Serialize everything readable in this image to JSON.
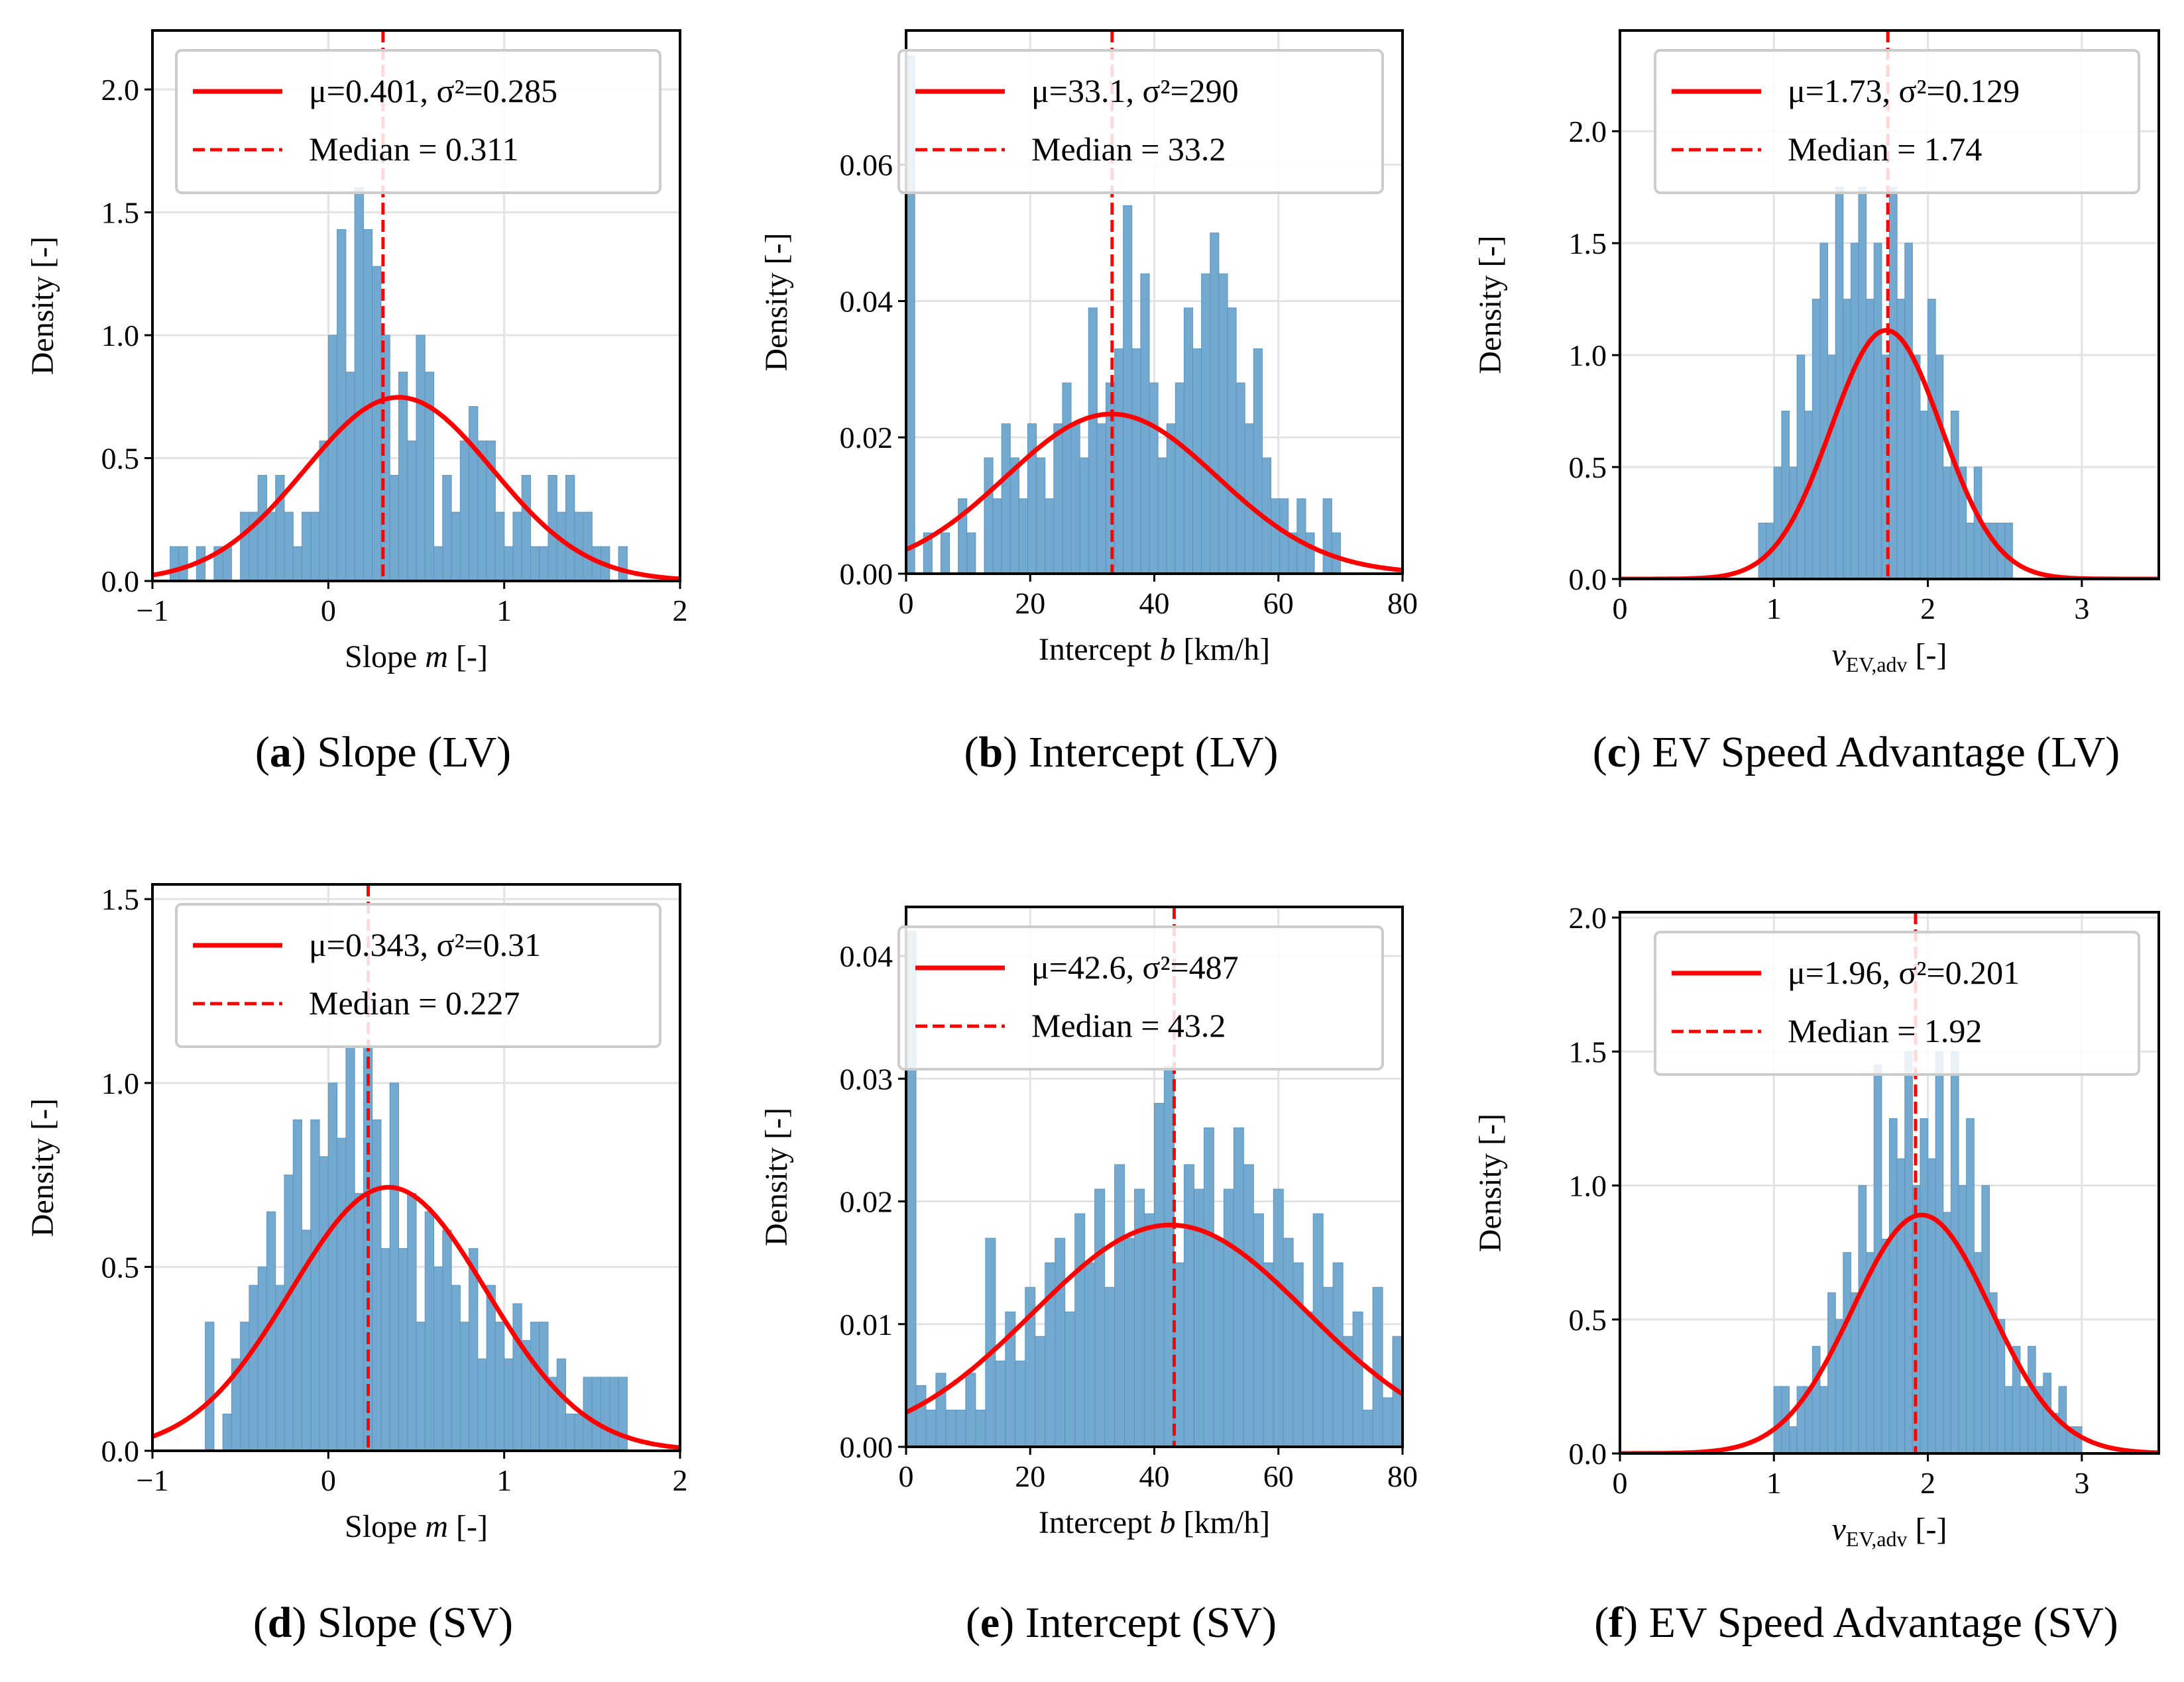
{
  "chart_data": [
    {
      "type": "bar",
      "panel": "a",
      "caption": "Slope (LV)",
      "xlabel": {
        "base": "Slope ",
        "ital": "m",
        "sub": "",
        "suffix": " [-]"
      },
      "ylabel": "Density [-]",
      "xlim": [
        -1,
        2
      ],
      "ylim": [
        0,
        2.24
      ],
      "xticks": [
        -1,
        0,
        1,
        2
      ],
      "xticklabels": [
        "−1",
        "0",
        "1",
        "2"
      ],
      "yticks": [
        0,
        0.5,
        1,
        1.5,
        2
      ],
      "yticklabels": [
        "0.0",
        "0.5",
        "1.0",
        "1.5",
        "2.0"
      ],
      "fit": {
        "mu": 0.401,
        "var": 0.285,
        "label": "μ=0.401, σ²=0.285"
      },
      "median": {
        "value": 0.311,
        "label": "Median = 0.311"
      },
      "bins": {
        "start": -0.9,
        "width": 0.05,
        "values": [
          0.14,
          0.14,
          0,
          0.14,
          0,
          0.14,
          0.14,
          0,
          0.28,
          0.28,
          0.43,
          0.28,
          0.43,
          0.28,
          0.14,
          0.28,
          0.28,
          0.57,
          1.0,
          1.43,
          0.85,
          1.6,
          1.43,
          1.28,
          1.0,
          0.43,
          0.85,
          0.57,
          1.0,
          0.85,
          0.14,
          0.43,
          0.28,
          0.57,
          0.71,
          0.57,
          0.57,
          0.28,
          0.14,
          0.28,
          0.43,
          0.14,
          0.14,
          0.43,
          0.28,
          0.43,
          0.28,
          0.28,
          0.14,
          0.14,
          0,
          0.14
        ]
      }
    },
    {
      "type": "bar",
      "panel": "b",
      "caption": "Intercept (LV)",
      "xlabel": {
        "base": "Intercept ",
        "ital": "b",
        "sub": "",
        "suffix": " [km/h]"
      },
      "ylabel": "Density [-]",
      "xlim": [
        0,
        80
      ],
      "ylim": [
        0,
        0.0797
      ],
      "xticks": [
        0,
        20,
        40,
        60,
        80
      ],
      "xticklabels": [
        "0",
        "20",
        "40",
        "60",
        "80"
      ],
      "yticks": [
        0,
        0.02,
        0.04,
        0.06
      ],
      "yticklabels": [
        "0.00",
        "0.02",
        "0.04",
        "0.06"
      ],
      "fit": {
        "mu": 33.1,
        "var": 290,
        "label": "μ=33.1, σ²=290"
      },
      "median": {
        "value": 33.2,
        "label": "Median = 33.2"
      },
      "bins": {
        "start": 0,
        "width": 1.4,
        "values": [
          0.076,
          0,
          0.006,
          0,
          0.006,
          0,
          0.011,
          0.006,
          0,
          0.017,
          0.011,
          0.022,
          0.017,
          0.011,
          0.022,
          0.017,
          0.011,
          0.022,
          0.028,
          0.022,
          0.017,
          0.039,
          0.022,
          0.028,
          0.033,
          0.054,
          0.033,
          0.044,
          0.028,
          0.017,
          0.022,
          0.028,
          0.039,
          0.033,
          0.044,
          0.05,
          0.044,
          0.039,
          0.028,
          0.022,
          0.033,
          0.017,
          0.011,
          0.011,
          0.006,
          0.011,
          0.006,
          0,
          0.011,
          0.006
        ]
      }
    },
    {
      "type": "bar",
      "panel": "c",
      "caption": "EV Speed Advantage (LV)",
      "xlabel": {
        "base": "",
        "ital": "v",
        "sub": "EV,adv",
        "suffix": " [-]"
      },
      "ylabel": "Density [-]",
      "xlim": [
        0,
        3.5
      ],
      "ylim": [
        0,
        2.45
      ],
      "xticks": [
        0,
        1,
        2,
        3
      ],
      "xticklabels": [
        "0",
        "1",
        "2",
        "3"
      ],
      "yticks": [
        0,
        0.5,
        1,
        1.5,
        2
      ],
      "yticklabels": [
        "0.0",
        "0.5",
        "1.0",
        "1.5",
        "2.0"
      ],
      "fit": {
        "mu": 1.73,
        "var": 0.129,
        "label": "μ=1.73, σ²=0.129"
      },
      "median": {
        "value": 1.74,
        "label": "Median = 1.74"
      },
      "bins": {
        "start": 0.9,
        "width": 0.05,
        "values": [
          0.25,
          0.25,
          0.5,
          0.75,
          0.5,
          1.0,
          0.75,
          1.25,
          1.5,
          1.0,
          1.75,
          1.25,
          1.5,
          1.75,
          1.25,
          1.5,
          1.0,
          1.75,
          1.25,
          1.5,
          1.0,
          0.75,
          1.25,
          1.0,
          0.5,
          0.75,
          0.5,
          0.25,
          0.5,
          0.25,
          0.25,
          0.25,
          0.25,
          0
        ]
      }
    },
    {
      "type": "bar",
      "panel": "d",
      "caption": "Slope (SV)",
      "xlabel": {
        "base": "Slope ",
        "ital": "m",
        "sub": "",
        "suffix": " [-]"
      },
      "ylabel": "Density [-]",
      "xlim": [
        -1,
        2
      ],
      "ylim": [
        0,
        1.54
      ],
      "xticks": [
        -1,
        0,
        1,
        2
      ],
      "xticklabels": [
        "−1",
        "0",
        "1",
        "2"
      ],
      "yticks": [
        0,
        0.5,
        1,
        1.5
      ],
      "yticklabels": [
        "0.0",
        "0.5",
        "1.0",
        "1.5"
      ],
      "fit": {
        "mu": 0.343,
        "var": 0.31,
        "label": "μ=0.343, σ²=0.31"
      },
      "median": {
        "value": 0.227,
        "label": "Median = 0.227"
      },
      "bins": {
        "start": -0.7,
        "width": 0.05,
        "values": [
          0.35,
          0,
          0.1,
          0.25,
          0.35,
          0.45,
          0.5,
          0.65,
          0.45,
          0.75,
          0.9,
          0.6,
          0.9,
          0.8,
          1.0,
          0.85,
          1.1,
          0.7,
          1.1,
          0.9,
          0.55,
          1.0,
          0.55,
          0.7,
          0.35,
          0.65,
          0.5,
          0.6,
          0.45,
          0.35,
          0.55,
          0.25,
          0.45,
          0.35,
          0.25,
          0.4,
          0.3,
          0.35,
          0.35,
          0.2,
          0.25,
          0.1,
          0.1,
          0.2,
          0.2,
          0.2,
          0.2,
          0.2
        ]
      }
    },
    {
      "type": "bar",
      "panel": "e",
      "caption": "Intercept (SV)",
      "xlabel": {
        "base": "Intercept ",
        "ital": "b",
        "sub": "",
        "suffix": " [km/h]"
      },
      "ylabel": "Density [-]",
      "xlim": [
        0,
        80
      ],
      "ylim": [
        0,
        0.044
      ],
      "xticks": [
        0,
        20,
        40,
        60,
        80
      ],
      "xticklabels": [
        "0",
        "20",
        "40",
        "60",
        "80"
      ],
      "yticks": [
        0,
        0.01,
        0.02,
        0.03,
        0.04
      ],
      "yticklabels": [
        "0.00",
        "0.01",
        "0.02",
        "0.03",
        "0.04"
      ],
      "fit": {
        "mu": 42.6,
        "var": 487,
        "label": "μ=42.6, σ²=487"
      },
      "median": {
        "value": 43.2,
        "label": "Median = 43.2"
      },
      "bins": {
        "start": 0,
        "width": 1.6,
        "values": [
          0.042,
          0.005,
          0.003,
          0.006,
          0.003,
          0.003,
          0.006,
          0.003,
          0.017,
          0.007,
          0.011,
          0.007,
          0.013,
          0.009,
          0.015,
          0.017,
          0.011,
          0.019,
          0.015,
          0.021,
          0.013,
          0.023,
          0.017,
          0.021,
          0.019,
          0.028,
          0.031,
          0.015,
          0.023,
          0.021,
          0.026,
          0.017,
          0.021,
          0.026,
          0.023,
          0.019,
          0.015,
          0.021,
          0.017,
          0.015,
          0.011,
          0.019,
          0.013,
          0.015,
          0.009,
          0.011,
          0.003,
          0.013,
          0.004,
          0.009
        ]
      }
    },
    {
      "type": "bar",
      "panel": "f",
      "caption": "EV Speed Advantage (SV)",
      "xlabel": {
        "base": "",
        "ital": "v",
        "sub": "EV,adv",
        "suffix": " [-]"
      },
      "ylabel": "Density [-]",
      "xlim": [
        0,
        3.5
      ],
      "ylim": [
        0,
        2.02
      ],
      "xticks": [
        0,
        1,
        2,
        3
      ],
      "xticklabels": [
        "0",
        "1",
        "2",
        "3"
      ],
      "yticks": [
        0,
        0.5,
        1,
        1.5,
        2
      ],
      "yticklabels": [
        "0.0",
        "0.5",
        "1.0",
        "1.5",
        "2.0"
      ],
      "fit": {
        "mu": 1.96,
        "var": 0.201,
        "label": "μ=1.96, σ²=0.201"
      },
      "median": {
        "value": 1.92,
        "label": "Median = 1.92"
      },
      "bins": {
        "start": 1.0,
        "width": 0.05,
        "values": [
          0.25,
          0.25,
          0.1,
          0.25,
          0.25,
          0.4,
          0.25,
          0.6,
          0.5,
          0.75,
          0.6,
          1.0,
          0.75,
          1.45,
          0.8,
          1.25,
          1.1,
          1.5,
          1.0,
          1.25,
          1.1,
          1.5,
          0.9,
          1.5,
          1.0,
          1.25,
          0.75,
          1.0,
          0.6,
          0.5,
          0.25,
          0.4,
          0.25,
          0.4,
          0.25,
          0.3,
          0.15,
          0.25,
          0.1,
          0.1
        ]
      }
    }
  ],
  "colors": {
    "bar": "#74a9cf",
    "bar_edge": "#5b95c2",
    "fit": "#ff0000",
    "grid": "#e3e3e3"
  }
}
